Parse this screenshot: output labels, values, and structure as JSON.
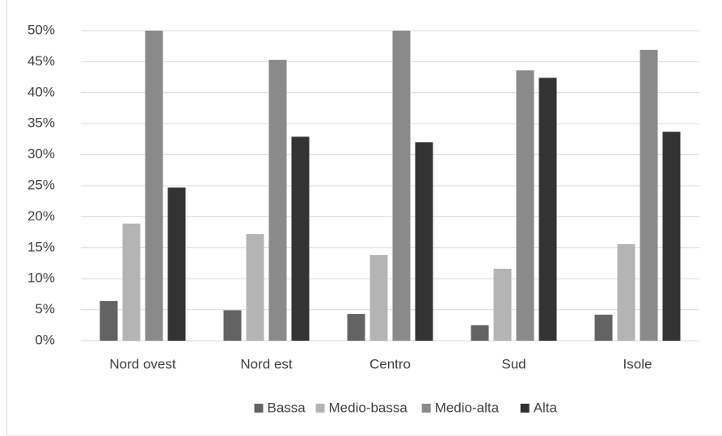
{
  "chart_data": {
    "type": "bar",
    "categories": [
      "Nord ovest",
      "Nord est",
      "Centro",
      "Sud",
      "Isole"
    ],
    "series": [
      {
        "name": "Bassa",
        "color": "#636363",
        "values": [
          6.4,
          4.9,
          4.3,
          2.5,
          4.2
        ]
      },
      {
        "name": "Medio-bassa",
        "color": "#b4b4b4",
        "values": [
          18.9,
          17.2,
          13.8,
          11.6,
          15.6
        ]
      },
      {
        "name": "Medio-alta",
        "color": "#8a8a8a",
        "values": [
          50,
          45.3,
          50,
          43.6,
          46.9
        ]
      },
      {
        "name": "Alta",
        "color": "#333333",
        "values": [
          24.7,
          32.9,
          32.0,
          42.4,
          33.7
        ]
      }
    ],
    "ylim": [
      0,
      50
    ],
    "yticks": [
      {
        "value": 0,
        "label": "0%"
      },
      {
        "value": 5,
        "label": "5%"
      },
      {
        "value": 10,
        "label": "10%"
      },
      {
        "value": 15,
        "label": "15%"
      },
      {
        "value": 20,
        "label": "20%"
      },
      {
        "value": 25,
        "label": "25%"
      },
      {
        "value": 30,
        "label": "30%"
      },
      {
        "value": 35,
        "label": "35%"
      },
      {
        "value": 40,
        "label": "40%"
      },
      {
        "value": 45,
        "label": "45%"
      },
      {
        "value": 50,
        "label": "50%"
      }
    ],
    "grid": true,
    "legend": "bottom"
  }
}
